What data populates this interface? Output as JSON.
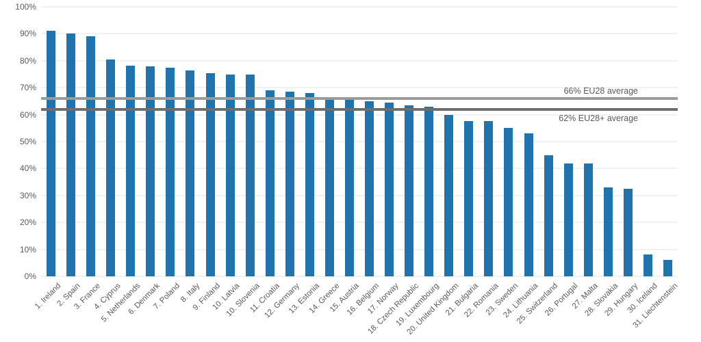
{
  "chart_data": {
    "type": "bar",
    "title": "",
    "xlabel": "",
    "ylabel": "",
    "ylim": [
      0,
      100
    ],
    "ytick_step": 10,
    "ytick_suffix": "%",
    "grid": true,
    "legend": "none",
    "bar_color": "#1f74ad",
    "axis_text_color": "#595959",
    "gridline_color": "#e0e3e5",
    "categories": [
      "1. Ireland",
      "2. Spain",
      "3. France",
      "4. Cyprus",
      "5. Netherlands",
      "6. Denmark",
      "7. Poland",
      "8. Italy",
      "9. Finland",
      "10. Latvia",
      "10. Slovenia",
      "11. Croatia",
      "12. Germany",
      "13. Estonia",
      "14. Greece",
      "15. Austria",
      "16. Belgium",
      "17. Norway",
      "18. Czech Republic",
      "19. Luxembourg",
      "20. United Kingdom",
      "21. Bulgaria",
      "22. Romania",
      "23. Sweden",
      "24. Lithuania",
      "25. Switzerland",
      "26. Portugal",
      "27. Malta",
      "28. Slovakia",
      "29. Hungary",
      "30. Iceland",
      "31. Liechtenstein"
    ],
    "values": [
      91,
      90,
      89,
      80.5,
      78.2,
      78,
      77.5,
      76.5,
      75.5,
      75,
      75,
      69,
      68.5,
      68,
      66,
      65.5,
      65,
      64.5,
      63.5,
      63,
      60,
      57.5,
      57.5,
      55,
      53,
      45,
      42,
      42,
      33,
      32.5,
      8,
      6
    ],
    "reference_lines": [
      {
        "value": 66,
        "label": "66% EU28 average",
        "color": "#9b9b9b",
        "label_side": "above"
      },
      {
        "value": 62,
        "label": "62% EU28+ average",
        "color": "#6e6e6e",
        "label_side": "below"
      }
    ]
  }
}
